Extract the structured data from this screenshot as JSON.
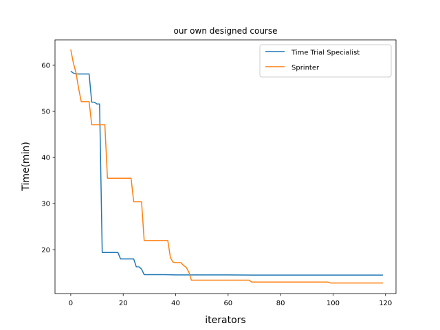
{
  "chart_data": {
    "type": "line",
    "title": "our own designed course",
    "xlabel": "iterators",
    "ylabel": "Time(min)",
    "xlim": [
      -6,
      124
    ],
    "ylim": [
      10.5,
      65.5
    ],
    "xticks": [
      0,
      20,
      40,
      60,
      80,
      100,
      120
    ],
    "yticks": [
      20,
      30,
      40,
      50,
      60
    ],
    "grid": false,
    "legend_position": "top-right",
    "series": [
      {
        "name": "Time Trial Specialist",
        "color": "#1f77b4",
        "x": [
          0,
          1,
          2,
          3,
          4,
          5,
          6,
          7,
          8,
          9,
          10,
          11,
          12,
          13,
          14,
          15,
          16,
          17,
          18,
          19,
          20,
          21,
          22,
          23,
          24,
          25,
          26,
          27,
          28,
          29,
          30,
          35,
          36,
          40,
          50,
          60,
          70,
          80,
          90,
          100,
          110,
          119
        ],
        "y": [
          58.7,
          58.3,
          58.1,
          58.1,
          58.1,
          58.1,
          58.1,
          58.1,
          52.0,
          52.0,
          51.6,
          51.6,
          19.4,
          19.4,
          19.4,
          19.4,
          19.4,
          19.4,
          19.4,
          18.0,
          18.0,
          18.0,
          18.0,
          18.0,
          18.0,
          16.3,
          16.3,
          15.8,
          14.6,
          14.6,
          14.6,
          14.6,
          14.6,
          14.55,
          14.55,
          14.55,
          14.5,
          14.5,
          14.5,
          14.5,
          14.5,
          14.5
        ]
      },
      {
        "name": "Sprinter",
        "color": "#ff7f0e",
        "x": [
          0,
          1,
          2,
          3,
          4,
          5,
          6,
          7,
          8,
          12,
          13,
          14,
          19,
          23,
          24,
          27,
          28,
          37,
          38,
          39,
          40,
          42,
          43,
          44,
          45,
          46,
          60,
          68,
          69,
          98,
          99,
          119
        ],
        "y": [
          63.4,
          60.5,
          58.4,
          55.0,
          52.1,
          52.1,
          52.1,
          52.1,
          47.1,
          47.1,
          47.1,
          35.5,
          35.5,
          35.5,
          30.4,
          30.4,
          22.0,
          22.0,
          18.3,
          17.3,
          17.2,
          17.2,
          16.6,
          16.2,
          15.2,
          13.4,
          13.4,
          13.4,
          13.0,
          13.0,
          12.8,
          12.8
        ]
      }
    ]
  }
}
